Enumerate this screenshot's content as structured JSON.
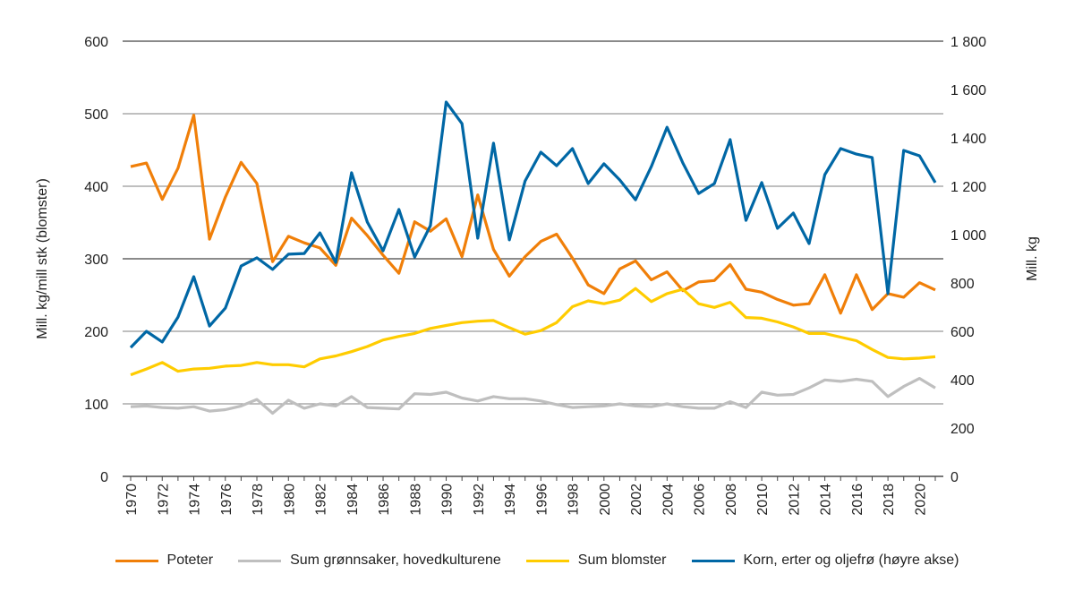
{
  "chart_data": {
    "type": "line",
    "ylabel": "Mill. kg/mill stk (blomster)",
    "y2label": "Mill. kg",
    "ylim": [
      0,
      600
    ],
    "y2lim": [
      0,
      1800
    ],
    "yticks": [
      "0",
      "100",
      "200",
      "300",
      "400",
      "500",
      "600"
    ],
    "y2ticks": [
      "0",
      "200",
      "400",
      "600",
      "800",
      "1 000",
      "1 200",
      "1 400",
      "1 600",
      "1 800"
    ],
    "grid": true,
    "legend": "bottom",
    "x": [
      1970,
      1971,
      1972,
      1973,
      1974,
      1975,
      1976,
      1977,
      1978,
      1979,
      1980,
      1981,
      1982,
      1983,
      1984,
      1985,
      1986,
      1987,
      1988,
      1989,
      1990,
      1991,
      1992,
      1993,
      1994,
      1995,
      1996,
      1997,
      1998,
      1999,
      2000,
      2001,
      2002,
      2003,
      2004,
      2005,
      2006,
      2007,
      2008,
      2009,
      2010,
      2011,
      2012,
      2013,
      2014,
      2015,
      2016,
      2017,
      2018,
      2019,
      2020,
      2021
    ],
    "xticks": [
      "1970",
      "1972",
      "1974",
      "1976",
      "1978",
      "1980",
      "1982",
      "1984",
      "1986",
      "1988",
      "1990",
      "1992",
      "1994",
      "1996",
      "1998",
      "2000",
      "2002",
      "2004",
      "2006",
      "2008",
      "2010",
      "2012",
      "2014",
      "2016",
      "2018",
      "2020"
    ],
    "series": [
      {
        "name": "Poteter",
        "axis": "left",
        "color": "#f07f09",
        "values": [
          427,
          432,
          382,
          425,
          498,
          327,
          385,
          433,
          404,
          296,
          331,
          322,
          315,
          291,
          356,
          332,
          305,
          280,
          351,
          338,
          355,
          303,
          388,
          313,
          276,
          303,
          324,
          334,
          301,
          264,
          252,
          286,
          297,
          271,
          282,
          256,
          268,
          270,
          292,
          258,
          254,
          244,
          236,
          238,
          278,
          225,
          278,
          230,
          252,
          247,
          267,
          257
        ]
      },
      {
        "name": "Sum grønnsaker, hovedkulturene",
        "axis": "left",
        "color": "#bfbfbf",
        "values": [
          96,
          97,
          95,
          94,
          96,
          90,
          92,
          97,
          106,
          87,
          105,
          94,
          100,
          97,
          110,
          95,
          94,
          93,
          114,
          113,
          116,
          108,
          104,
          110,
          107,
          107,
          104,
          99,
          95,
          96,
          97,
          100,
          97,
          96,
          100,
          96,
          94,
          94,
          103,
          95,
          116,
          112,
          113,
          122,
          133,
          131,
          134,
          131,
          110,
          124,
          135,
          122
        ]
      },
      {
        "name": "Sum blomster",
        "axis": "left",
        "color": "#ffcc00",
        "values": [
          140,
          148,
          157,
          145,
          148,
          149,
          152,
          153,
          157,
          154,
          154,
          151,
          162,
          166,
          172,
          179,
          188,
          193,
          197,
          204,
          208,
          212,
          214,
          215,
          205,
          196,
          201,
          212,
          234,
          242,
          238,
          243,
          259,
          241,
          252,
          258,
          238,
          233,
          240,
          219,
          218,
          213,
          206,
          197,
          197,
          192,
          187,
          175,
          164,
          162,
          163,
          165
        ]
      },
      {
        "name": "Korn, erter og oljefrø (høyre akse)",
        "axis": "right",
        "color": "#0067a5",
        "values": [
          533,
          600,
          556,
          659,
          826,
          622,
          696,
          870,
          904,
          856,
          919,
          922,
          1007,
          885,
          1256,
          1052,
          933,
          1104,
          907,
          1037,
          1548,
          1459,
          985,
          1378,
          978,
          1222,
          1341,
          1285,
          1356,
          1211,
          1293,
          1226,
          1144,
          1281,
          1444,
          1296,
          1170,
          1211,
          1393,
          1059,
          1215,
          1026,
          1089,
          963,
          1248,
          1356,
          1333,
          1319,
          756,
          1348,
          1326,
          1215
        ]
      }
    ]
  }
}
